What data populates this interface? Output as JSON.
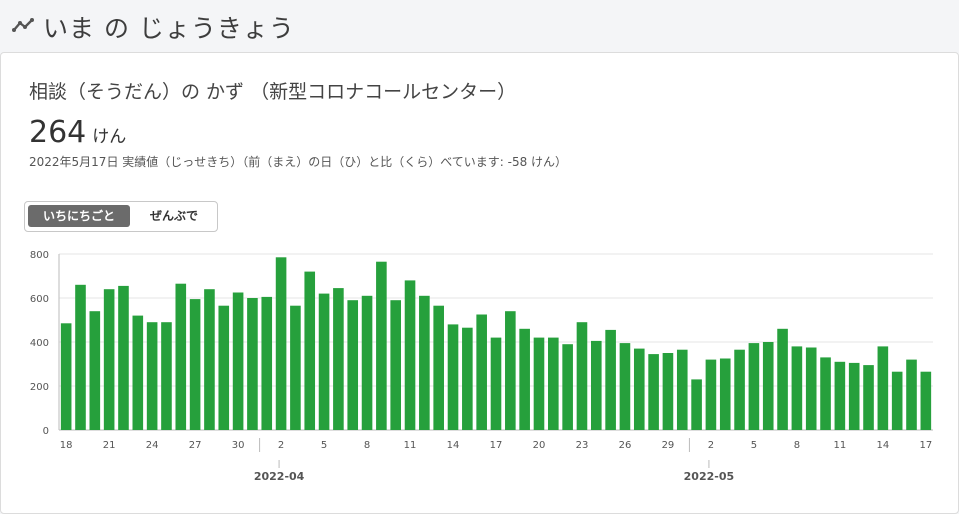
{
  "header": {
    "title": "いま の じょうきょう",
    "icon": "trend-line-icon"
  },
  "card": {
    "title": "相談（そうだん）の かず （新型コロナコールセンター）",
    "value": "264",
    "unit": "けん",
    "subtext": "2022年5月17日 実績値（じっせきち）（前（まえ）の日（ひ）と比（くら）べています: -58 けん）"
  },
  "toggle": {
    "daily_label": "いちにちごと",
    "total_label": "ぜんぶで",
    "selected": "daily"
  },
  "colors": {
    "bar": "#26a03c",
    "grid": "#e6e6e6",
    "axis": "#bbbbbb"
  },
  "chart_data": {
    "type": "bar",
    "ylim": [
      0,
      800
    ],
    "yticks": [
      0,
      200,
      400,
      600,
      800
    ],
    "grid": true,
    "dates": [
      "2022-03-18",
      "2022-03-19",
      "2022-03-20",
      "2022-03-21",
      "2022-03-22",
      "2022-03-23",
      "2022-03-24",
      "2022-03-25",
      "2022-03-26",
      "2022-03-27",
      "2022-03-28",
      "2022-03-29",
      "2022-03-30",
      "2022-03-31",
      "2022-04-01",
      "2022-04-02",
      "2022-04-03",
      "2022-04-04",
      "2022-04-05",
      "2022-04-06",
      "2022-04-07",
      "2022-04-08",
      "2022-04-09",
      "2022-04-10",
      "2022-04-11",
      "2022-04-12",
      "2022-04-13",
      "2022-04-14",
      "2022-04-15",
      "2022-04-16",
      "2022-04-17",
      "2022-04-18",
      "2022-04-19",
      "2022-04-20",
      "2022-04-21",
      "2022-04-22",
      "2022-04-23",
      "2022-04-24",
      "2022-04-25",
      "2022-04-26",
      "2022-04-27",
      "2022-04-28",
      "2022-04-29",
      "2022-04-30",
      "2022-05-01",
      "2022-05-02",
      "2022-05-03",
      "2022-05-04",
      "2022-05-05",
      "2022-05-06",
      "2022-05-07",
      "2022-05-08",
      "2022-05-09",
      "2022-05-10",
      "2022-05-11",
      "2022-05-12",
      "2022-05-13",
      "2022-05-14",
      "2022-05-15",
      "2022-05-16",
      "2022-05-17"
    ],
    "values": [
      485,
      660,
      540,
      640,
      655,
      520,
      490,
      490,
      665,
      595,
      640,
      565,
      625,
      600,
      605,
      785,
      565,
      720,
      620,
      645,
      590,
      610,
      765,
      590,
      680,
      610,
      565,
      480,
      465,
      525,
      420,
      540,
      460,
      420,
      420,
      390,
      490,
      405,
      455,
      395,
      370,
      345,
      350,
      365,
      230,
      320,
      325,
      365,
      395,
      400,
      460,
      380,
      375,
      330,
      310,
      305,
      295,
      380,
      265,
      320,
      265
    ],
    "xtick_labels": [
      "18",
      "21",
      "24",
      "27",
      "30",
      "2",
      "5",
      "8",
      "11",
      "14",
      "17",
      "20",
      "23",
      "26",
      "29",
      "2",
      "5",
      "8",
      "11",
      "14",
      "17"
    ],
    "month_labels": [
      "2022-04",
      "2022-05"
    ]
  }
}
